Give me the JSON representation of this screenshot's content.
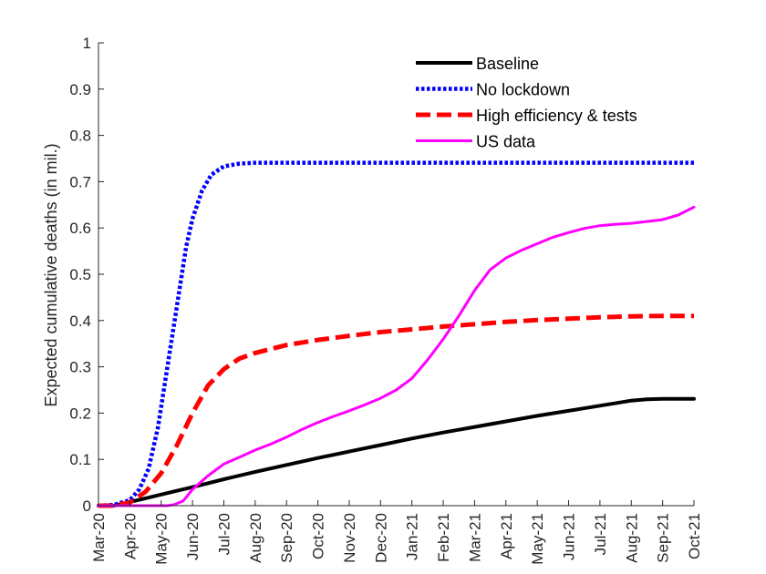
{
  "chart_data": {
    "type": "line",
    "title": "",
    "xlabel": "",
    "ylabel": "Expected cumulative deaths (in mil.)",
    "x_ticks": [
      "Mar-20",
      "Apr-20",
      "May-20",
      "Jun-20",
      "Jul-20",
      "Aug-20",
      "Sep-20",
      "Oct-20",
      "Nov-20",
      "Dec-20",
      "Jan-21",
      "Feb-21",
      "Mar-21",
      "Apr-21",
      "May-21",
      "Jun-21",
      "Jul-21",
      "Aug-21",
      "Sep-21",
      "Oct-21"
    ],
    "y_ticks": [
      "0",
      "0.1",
      "0.2",
      "0.3",
      "0.4",
      "0.5",
      "0.6",
      "0.7",
      "0.8",
      "0.9",
      "1"
    ],
    "xlim": [
      0,
      19
    ],
    "ylim": [
      0,
      1
    ],
    "grid": false,
    "legend_position": "top-right",
    "series": [
      {
        "name": "Baseline",
        "color": "#000000",
        "style": "solid",
        "x": [
          0,
          0.5,
          1,
          1.5,
          2,
          2.5,
          3,
          4,
          5,
          6,
          7,
          8,
          9,
          10,
          11,
          12,
          13,
          14,
          15,
          16,
          17,
          17.5,
          18,
          18.5,
          19
        ],
        "values": [
          0,
          0,
          0.008,
          0.016,
          0.024,
          0.032,
          0.04,
          0.057,
          0.073,
          0.088,
          0.103,
          0.117,
          0.131,
          0.145,
          0.158,
          0.17,
          0.182,
          0.194,
          0.205,
          0.216,
          0.227,
          0.23,
          0.231,
          0.231,
          0.231
        ]
      },
      {
        "name": "No lockdown",
        "color": "#0000ff",
        "style": "dotted",
        "x": [
          0,
          0.5,
          1,
          1.3,
          1.6,
          1.9,
          2.2,
          2.5,
          2.8,
          3,
          3.3,
          3.6,
          4,
          4.5,
          5,
          6,
          7,
          8,
          10,
          12,
          14,
          16,
          19
        ],
        "values": [
          0,
          0.002,
          0.012,
          0.035,
          0.08,
          0.17,
          0.3,
          0.43,
          0.56,
          0.62,
          0.68,
          0.715,
          0.733,
          0.739,
          0.741,
          0.741,
          0.741,
          0.741,
          0.741,
          0.741,
          0.741,
          0.741,
          0.741
        ]
      },
      {
        "name": "High efficiency & tests",
        "color": "#ff0000",
        "style": "dashed",
        "x": [
          0,
          0.5,
          1,
          1.5,
          2,
          2.5,
          3,
          3.5,
          4,
          4.5,
          5,
          6,
          7,
          8,
          9,
          10,
          11,
          12,
          13,
          14,
          15,
          16,
          17,
          18,
          19
        ],
        "values": [
          0,
          0,
          0.007,
          0.03,
          0.07,
          0.13,
          0.2,
          0.26,
          0.295,
          0.318,
          0.33,
          0.347,
          0.358,
          0.367,
          0.375,
          0.381,
          0.387,
          0.392,
          0.397,
          0.401,
          0.404,
          0.407,
          0.409,
          0.41,
          0.41
        ]
      },
      {
        "name": "US data",
        "color": "#ff00ff",
        "style": "solid",
        "x": [
          0,
          0.5,
          1,
          1.5,
          2,
          2.2,
          2.4,
          2.7,
          3,
          3.5,
          4,
          4.5,
          5,
          5.5,
          6,
          6.5,
          7,
          7.5,
          8,
          8.5,
          9,
          9.5,
          10,
          10.5,
          11,
          11.5,
          12,
          12.5,
          13,
          13.5,
          14,
          14.5,
          15,
          15.5,
          16,
          16.5,
          17,
          17.5,
          18,
          18.5,
          19
        ],
        "values": [
          0,
          0,
          0,
          0,
          0,
          0,
          0.002,
          0.01,
          0.035,
          0.065,
          0.09,
          0.105,
          0.12,
          0.133,
          0.148,
          0.165,
          0.18,
          0.193,
          0.205,
          0.218,
          0.232,
          0.25,
          0.275,
          0.315,
          0.36,
          0.41,
          0.465,
          0.51,
          0.535,
          0.552,
          0.566,
          0.58,
          0.59,
          0.599,
          0.605,
          0.608,
          0.61,
          0.614,
          0.618,
          0.628,
          0.645
        ]
      }
    ]
  }
}
